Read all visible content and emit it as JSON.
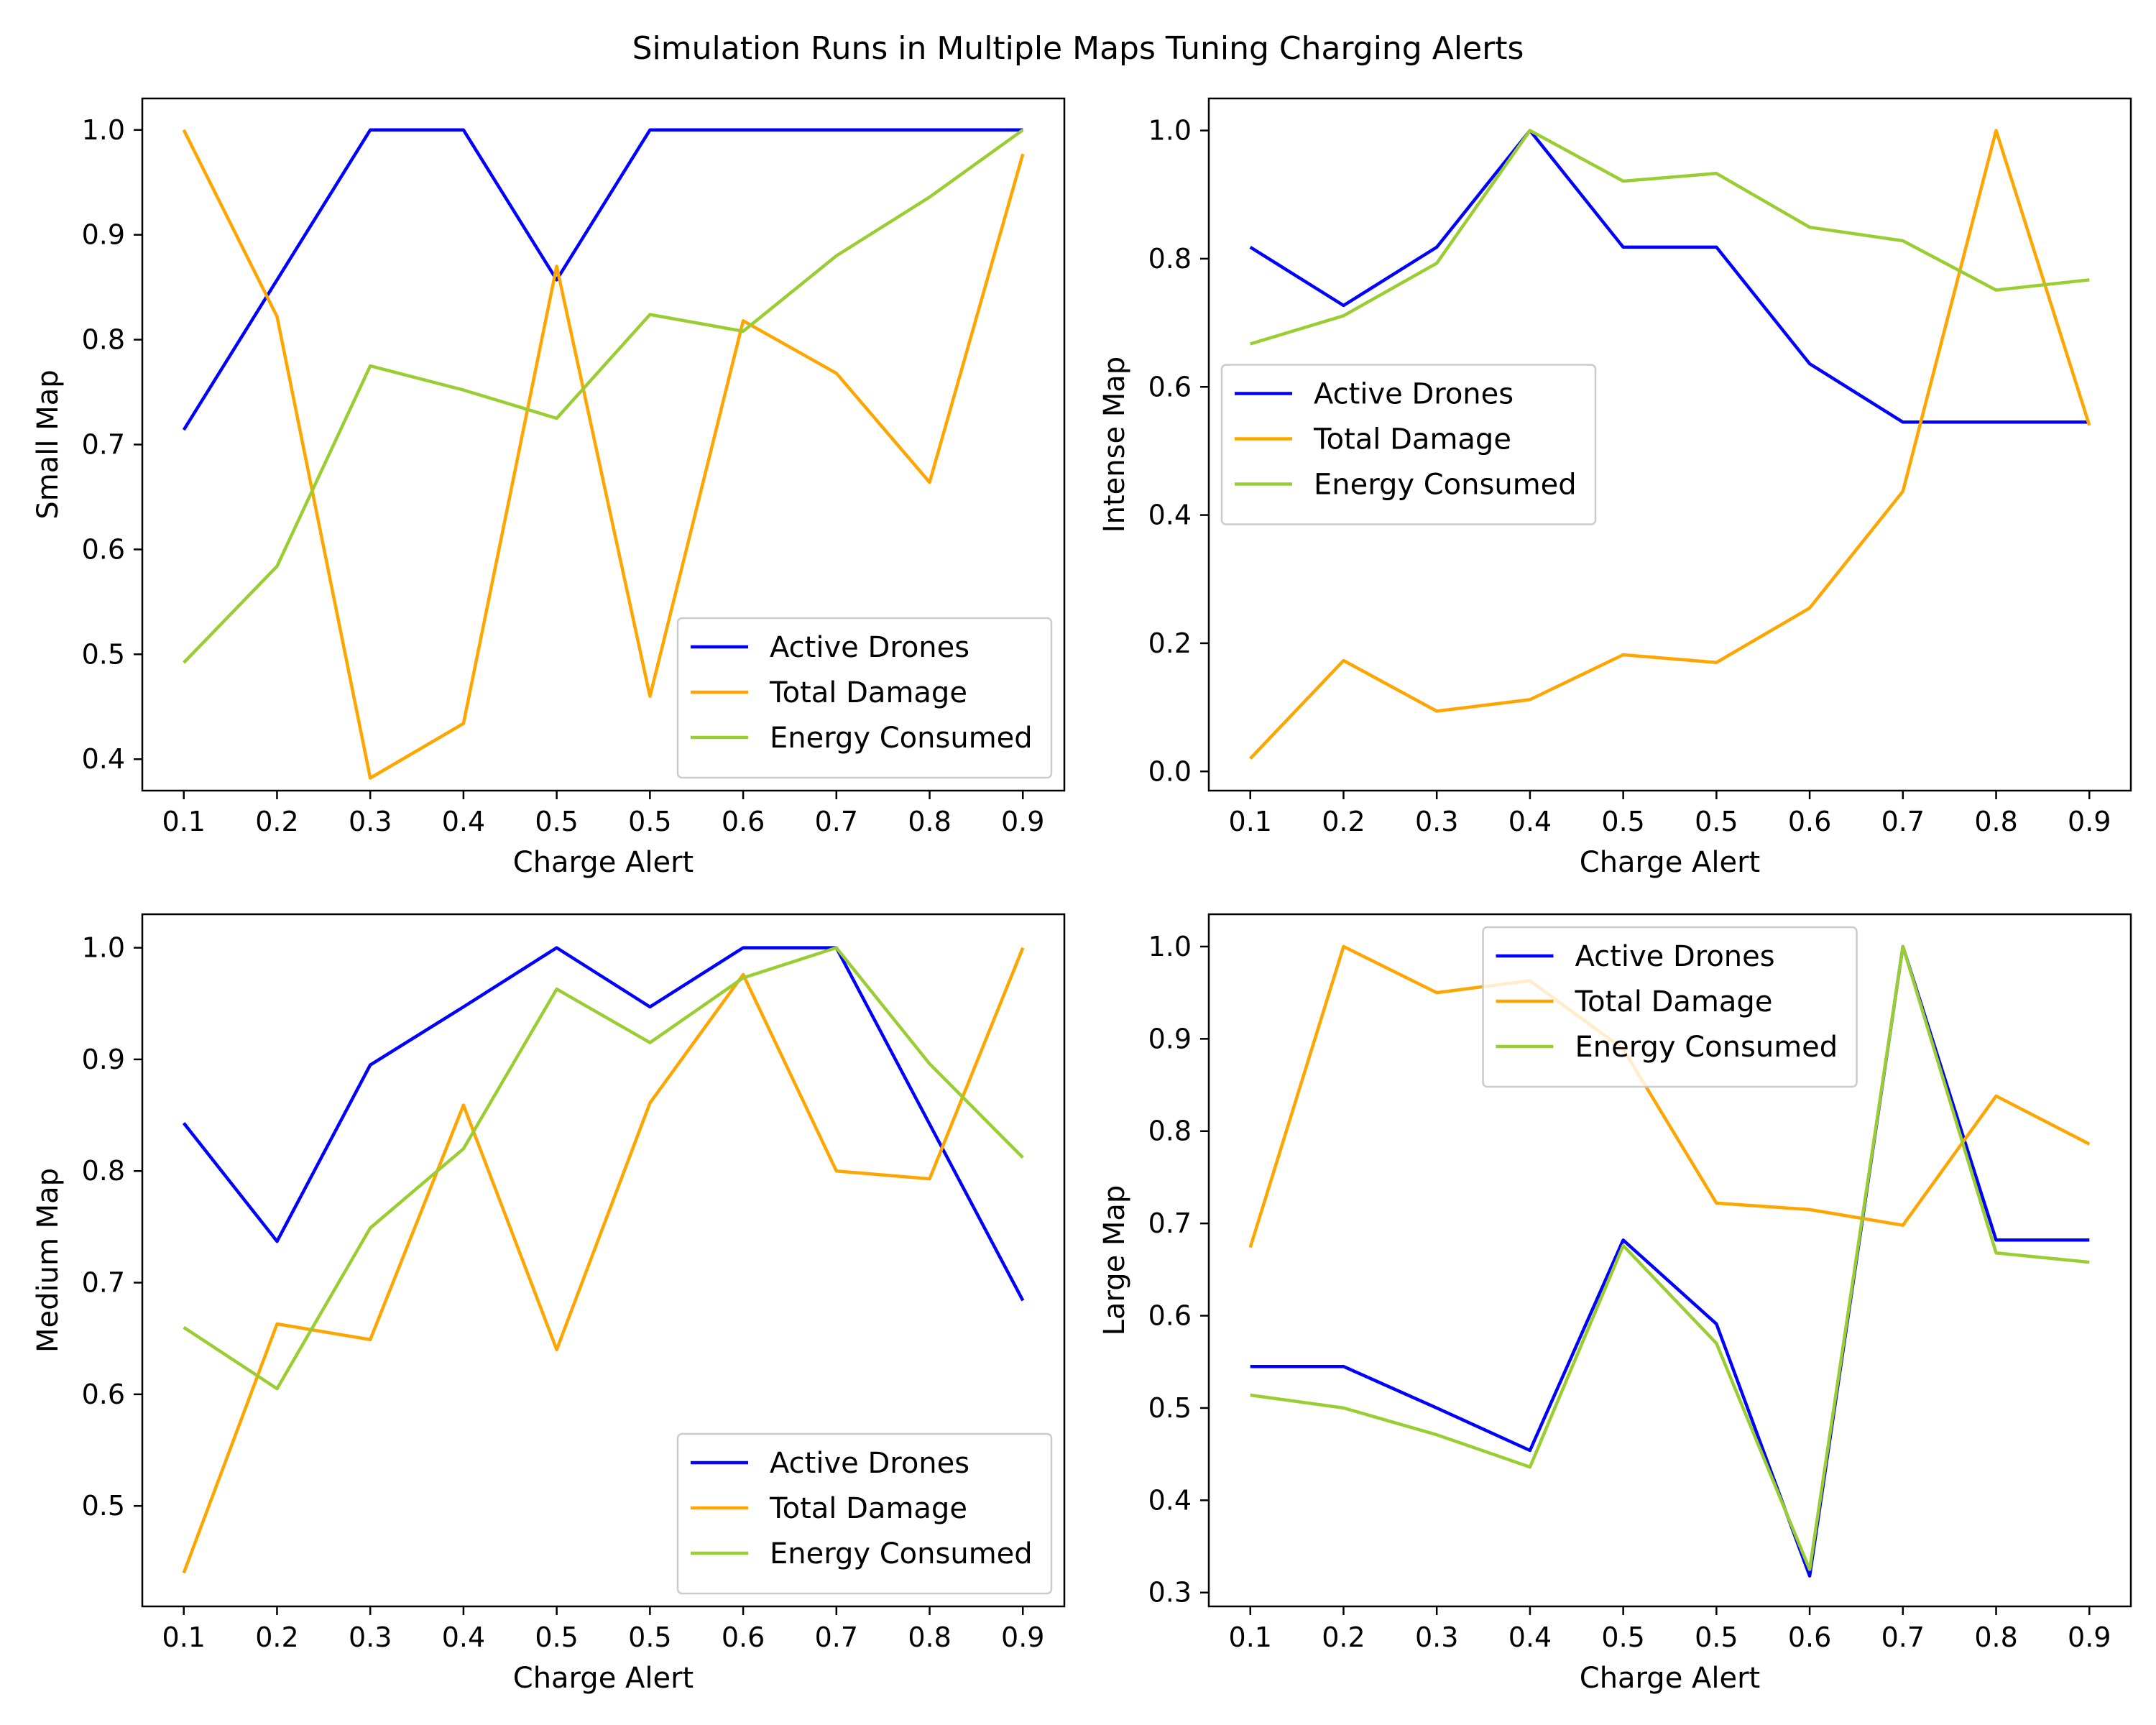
{
  "figure": {
    "title": "Simulation Runs in Multiple Maps Tuning Charging Alerts"
  },
  "colors": {
    "Active Drones": "#0000ff",
    "Total Damage": "#ffa500",
    "Energy Consumed": "#9acd32"
  },
  "chart_data": [
    {
      "type": "line",
      "xlabel": "Charge Alert",
      "ylabel": "Small Map",
      "categories": [
        "0.1",
        "0.2",
        "0.3",
        "0.4",
        "0.5",
        "0.5",
        "0.6",
        "0.7",
        "0.8",
        "0.9"
      ],
      "ylim": [
        0.37,
        1.03
      ],
      "yticks": [
        "0.4",
        "0.5",
        "0.6",
        "0.7",
        "0.8",
        "0.9",
        "1.0"
      ],
      "legend": "lower-right",
      "grid": false,
      "series": [
        {
          "name": "Active Drones",
          "values": [
            0.714,
            0.857,
            1.0,
            1.0,
            0.857,
            1.0,
            1.0,
            1.0,
            1.0,
            1.0
          ]
        },
        {
          "name": "Total Damage",
          "values": [
            1.0,
            0.822,
            0.382,
            0.434,
            0.87,
            0.46,
            0.818,
            0.768,
            0.664,
            0.977
          ]
        },
        {
          "name": "Energy Consumed",
          "values": [
            0.492,
            0.584,
            0.775,
            0.752,
            0.725,
            0.824,
            0.808,
            0.88,
            0.936,
            1.0
          ]
        }
      ]
    },
    {
      "type": "line",
      "xlabel": "Charge Alert",
      "ylabel": "Intense Map",
      "categories": [
        "0.1",
        "0.2",
        "0.3",
        "0.4",
        "0.5",
        "0.5",
        "0.6",
        "0.7",
        "0.8",
        "0.9"
      ],
      "ylim": [
        -0.03,
        1.05
      ],
      "yticks": [
        "0.0",
        "0.2",
        "0.4",
        "0.6",
        "0.8",
        "1.0"
      ],
      "legend": "center-left",
      "grid": false,
      "series": [
        {
          "name": "Active Drones",
          "values": [
            0.818,
            0.727,
            0.818,
            1.0,
            0.818,
            0.818,
            0.636,
            0.545,
            0.545,
            0.545
          ]
        },
        {
          "name": "Total Damage",
          "values": [
            0.02,
            0.173,
            0.094,
            0.112,
            0.182,
            0.17,
            0.255,
            0.437,
            1.0,
            0.54
          ]
        },
        {
          "name": "Energy Consumed",
          "values": [
            0.667,
            0.711,
            0.793,
            1.0,
            0.921,
            0.933,
            0.849,
            0.828,
            0.751,
            0.767
          ]
        }
      ]
    },
    {
      "type": "line",
      "xlabel": "Charge Alert",
      "ylabel": "Medium Map",
      "categories": [
        "0.1",
        "0.2",
        "0.3",
        "0.4",
        "0.5",
        "0.5",
        "0.6",
        "0.7",
        "0.8",
        "0.9"
      ],
      "ylim": [
        0.41,
        1.03
      ],
      "yticks": [
        "0.5",
        "0.6",
        "0.7",
        "0.8",
        "0.9",
        "1.0"
      ],
      "legend": "lower-right",
      "grid": false,
      "series": [
        {
          "name": "Active Drones",
          "values": [
            0.843,
            0.737,
            0.895,
            0.947,
            1.0,
            0.947,
            1.0,
            1.0,
            0.842,
            0.684
          ]
        },
        {
          "name": "Total Damage",
          "values": [
            0.44,
            0.663,
            0.649,
            0.859,
            0.64,
            0.861,
            0.976,
            0.8,
            0.793,
            1.0
          ]
        },
        {
          "name": "Energy Consumed",
          "values": [
            0.66,
            0.605,
            0.749,
            0.82,
            0.963,
            0.915,
            0.973,
            1.0,
            0.896,
            0.812
          ]
        }
      ]
    },
    {
      "type": "line",
      "xlabel": "Charge Alert",
      "ylabel": "Large Map",
      "categories": [
        "0.1",
        "0.2",
        "0.3",
        "0.4",
        "0.5",
        "0.5",
        "0.6",
        "0.7",
        "0.8",
        "0.9"
      ],
      "ylim": [
        0.285,
        1.035
      ],
      "yticks": [
        "0.3",
        "0.4",
        "0.5",
        "0.6",
        "0.7",
        "0.8",
        "0.9",
        "1.0"
      ],
      "legend": "upper-center",
      "grid": false,
      "series": [
        {
          "name": "Active Drones",
          "values": [
            0.545,
            0.545,
            0.5,
            0.454,
            0.682,
            0.591,
            0.318,
            1.0,
            0.682,
            0.682
          ]
        },
        {
          "name": "Total Damage",
          "values": [
            0.674,
            1.0,
            0.95,
            0.963,
            0.889,
            0.722,
            0.715,
            0.698,
            0.838,
            0.786
          ]
        },
        {
          "name": "Energy Consumed",
          "values": [
            0.514,
            0.5,
            0.471,
            0.436,
            0.676,
            0.57,
            0.325,
            1.0,
            0.668,
            0.658
          ]
        }
      ]
    }
  ]
}
